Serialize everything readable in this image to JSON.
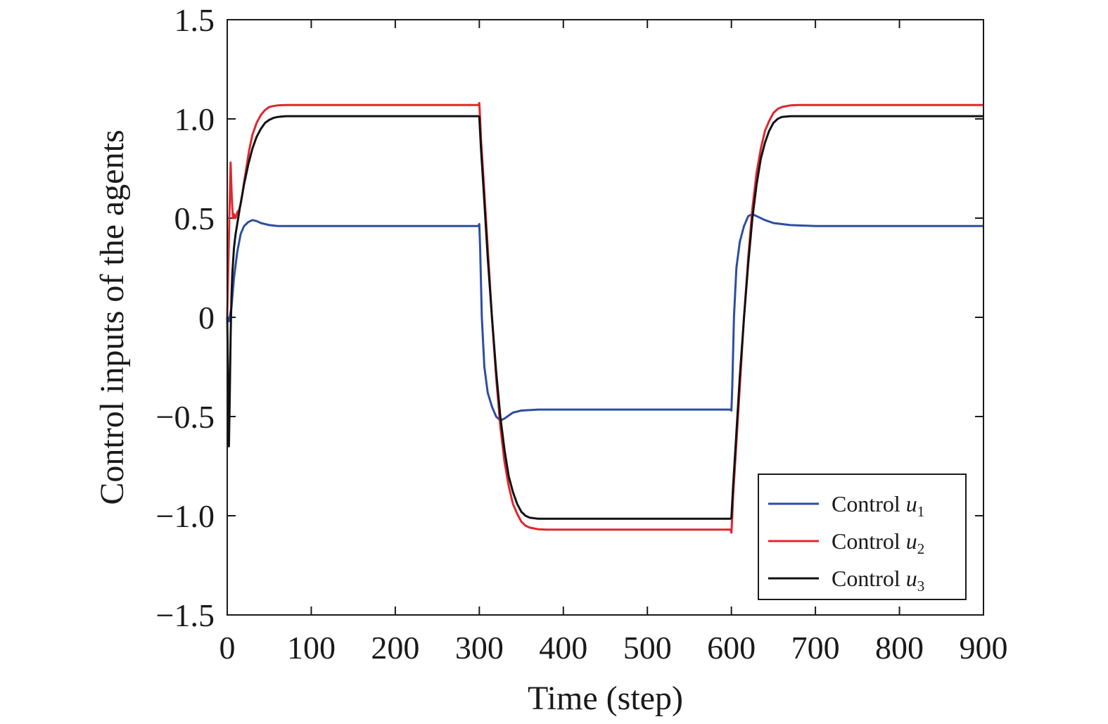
{
  "chart_data": {
    "type": "line",
    "title": "",
    "xlabel": "Time (step)",
    "ylabel": "Control inputs of the agents",
    "xlim": [
      0,
      900
    ],
    "ylim": [
      -1.5,
      1.5
    ],
    "xticks": [
      0,
      100,
      200,
      300,
      400,
      500,
      600,
      700,
      800,
      900
    ],
    "xtick_labels": [
      "0",
      "100",
      "200",
      "300",
      "400",
      "500",
      "600",
      "700",
      "800",
      "900"
    ],
    "yticks": [
      1.5,
      1.0,
      0.5,
      0,
      -0.5,
      -1.0,
      -1.5
    ],
    "ytick_labels": [
      "1.5",
      "1.0",
      "0.5",
      "0",
      "−0.5",
      "−1.0",
      "−1.5"
    ],
    "grid": false,
    "legend_position": "bottom-right",
    "series": [
      {
        "name": "Control u1",
        "legend_prefix": "Control ",
        "legend_var": "u",
        "legend_sub": "1",
        "color": "#2e4da0",
        "x": [
          0,
          2,
          5,
          8,
          12,
          16,
          20,
          25,
          30,
          35,
          40,
          50,
          60,
          80,
          100,
          200,
          299,
          300,
          301,
          303,
          306,
          310,
          315,
          320,
          325,
          330,
          340,
          350,
          370,
          400,
          500,
          599,
          600,
          601,
          603,
          606,
          610,
          615,
          620,
          625,
          630,
          640,
          650,
          670,
          700,
          800,
          900
        ],
        "y": [
          0.0,
          -0.02,
          0.05,
          0.2,
          0.33,
          0.42,
          0.46,
          0.48,
          0.49,
          0.485,
          0.475,
          0.465,
          0.46,
          0.46,
          0.46,
          0.46,
          0.46,
          0.47,
          0.35,
          0.0,
          -0.25,
          -0.38,
          -0.45,
          -0.5,
          -0.52,
          -0.51,
          -0.48,
          -0.47,
          -0.465,
          -0.465,
          -0.465,
          -0.465,
          -0.47,
          -0.35,
          0.0,
          0.25,
          0.38,
          0.46,
          0.51,
          0.52,
          0.51,
          0.49,
          0.475,
          0.465,
          0.46,
          0.46,
          0.46
        ]
      },
      {
        "name": "Control u2",
        "legend_prefix": "Control ",
        "legend_var": "u",
        "legend_sub": "2",
        "color": "#e0262f",
        "x": [
          0,
          2,
          4,
          5,
          6,
          7,
          8,
          10,
          12,
          14,
          16,
          18,
          20,
          23,
          26,
          30,
          35,
          40,
          45,
          50,
          55,
          60,
          70,
          80,
          100,
          200,
          299,
          300,
          301,
          302,
          305,
          310,
          315,
          320,
          325,
          330,
          335,
          340,
          345,
          350,
          355,
          360,
          370,
          380,
          400,
          500,
          599,
          600,
          601,
          602,
          605,
          610,
          615,
          620,
          625,
          630,
          635,
          640,
          645,
          650,
          655,
          660,
          670,
          680,
          700,
          800,
          900
        ],
        "y": [
          0.0,
          0.4,
          0.78,
          0.65,
          0.55,
          0.5,
          0.52,
          0.5,
          0.53,
          0.54,
          0.57,
          0.62,
          0.68,
          0.76,
          0.84,
          0.92,
          0.98,
          1.02,
          1.045,
          1.06,
          1.065,
          1.068,
          1.07,
          1.07,
          1.07,
          1.07,
          1.07,
          1.08,
          1.0,
          0.9,
          0.7,
          0.35,
          0.0,
          -0.3,
          -0.55,
          -0.73,
          -0.85,
          -0.94,
          -0.99,
          -1.03,
          -1.05,
          -1.06,
          -1.068,
          -1.07,
          -1.07,
          -1.07,
          -1.07,
          -1.085,
          -1.0,
          -0.9,
          -0.7,
          -0.35,
          0.0,
          0.3,
          0.55,
          0.73,
          0.85,
          0.94,
          0.99,
          1.03,
          1.05,
          1.06,
          1.068,
          1.07,
          1.07,
          1.07,
          1.07
        ]
      },
      {
        "name": "Control u3",
        "legend_prefix": "Control ",
        "legend_var": "u",
        "legend_sub": "3",
        "color": "#111111",
        "x": [
          0,
          2,
          3,
          4,
          5,
          6,
          8,
          10,
          15,
          20,
          25,
          30,
          35,
          40,
          45,
          50,
          55,
          60,
          65,
          70,
          80,
          100,
          200,
          299,
          300,
          302,
          305,
          310,
          315,
          320,
          325,
          330,
          335,
          340,
          345,
          350,
          355,
          360,
          370,
          380,
          400,
          500,
          599,
          600,
          602,
          605,
          610,
          615,
          620,
          625,
          630,
          635,
          640,
          645,
          650,
          655,
          660,
          670,
          680,
          700,
          800,
          900
        ],
        "y": [
          0.0,
          -0.65,
          -0.4,
          -0.1,
          0.1,
          0.22,
          0.35,
          0.42,
          0.55,
          0.67,
          0.77,
          0.85,
          0.91,
          0.95,
          0.98,
          0.995,
          1.005,
          1.01,
          1.012,
          1.014,
          1.014,
          1.014,
          1.014,
          1.014,
          1.01,
          0.85,
          0.65,
          0.3,
          0.0,
          -0.27,
          -0.5,
          -0.67,
          -0.8,
          -0.88,
          -0.94,
          -0.98,
          -1.0,
          -1.01,
          -1.015,
          -1.015,
          -1.015,
          -1.015,
          -1.015,
          -1.01,
          -0.85,
          -0.65,
          -0.3,
          0.0,
          0.27,
          0.5,
          0.67,
          0.8,
          0.88,
          0.94,
          0.98,
          1.0,
          1.01,
          1.014,
          1.014,
          1.014,
          1.014,
          1.014
        ]
      }
    ]
  }
}
